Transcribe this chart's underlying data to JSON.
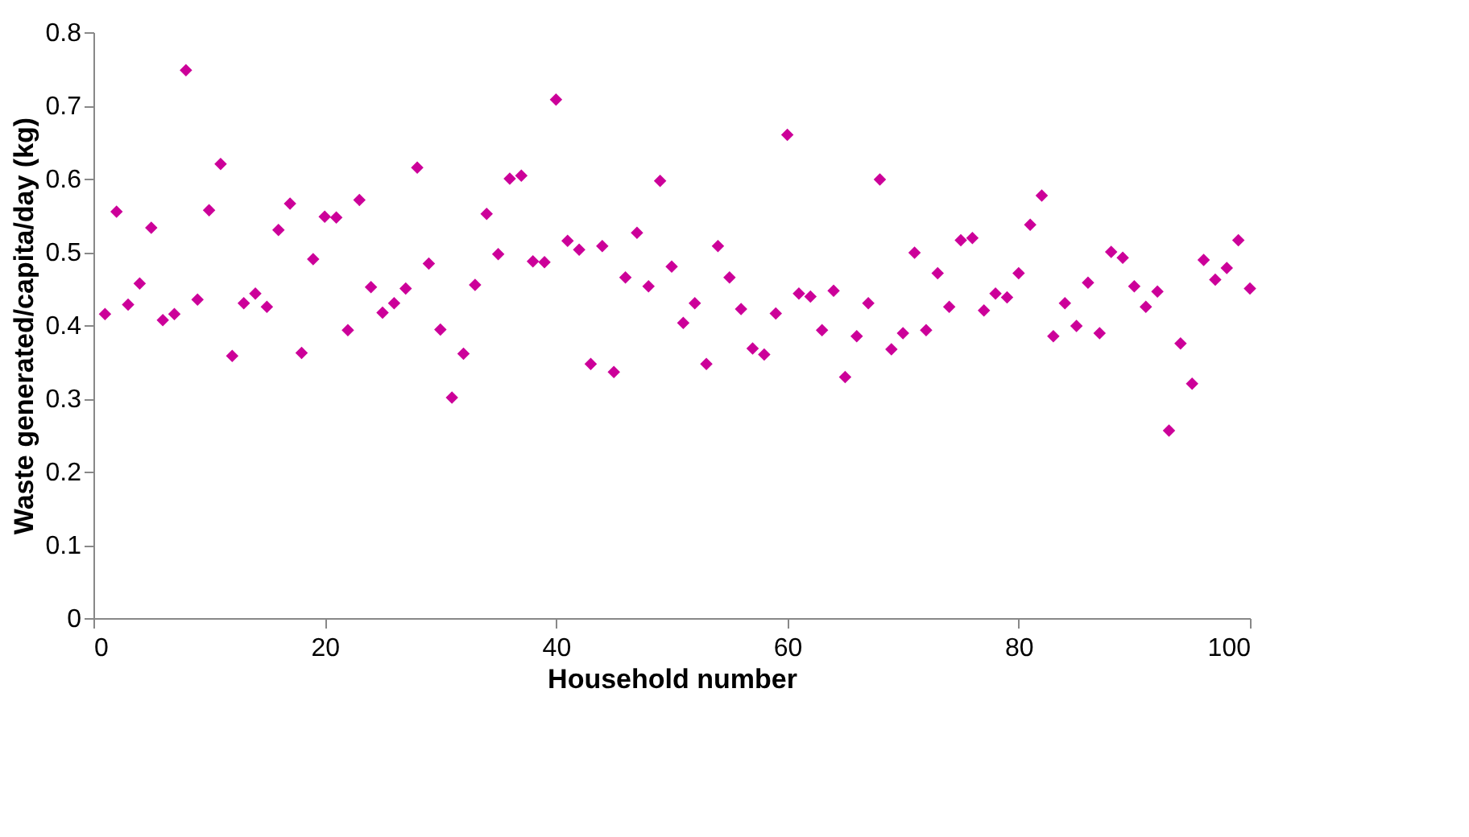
{
  "chart_data": {
    "type": "scatter",
    "xlabel": "Household number",
    "ylabel": "Waste generated/capita/day (kg)",
    "x": [
      1,
      2,
      3,
      4,
      5,
      6,
      7,
      8,
      9,
      10,
      11,
      12,
      13,
      14,
      15,
      16,
      17,
      18,
      19,
      20,
      21,
      22,
      23,
      24,
      25,
      26,
      27,
      28,
      29,
      30,
      31,
      32,
      33,
      34,
      35,
      36,
      37,
      38,
      39,
      40,
      41,
      42,
      43,
      44,
      45,
      46,
      47,
      48,
      49,
      50,
      51,
      52,
      53,
      54,
      55,
      56,
      57,
      58,
      59,
      60,
      61,
      62,
      63,
      64,
      65,
      66,
      67,
      68,
      69,
      70,
      71,
      72,
      73,
      74,
      75,
      76,
      77,
      78,
      79,
      80,
      81,
      82,
      83,
      84,
      85,
      86,
      87,
      88,
      89,
      90,
      91,
      92,
      93,
      94,
      95,
      96,
      97,
      98,
      99,
      100
    ],
    "series": [
      {
        "color": "#cc0099",
        "values": [
          0.415,
          0.555,
          0.428,
          0.457,
          0.533,
          0.407,
          0.415,
          0.748,
          0.435,
          0.557,
          0.62,
          0.358,
          0.43,
          0.443,
          0.425,
          0.53,
          0.566,
          0.362,
          0.49,
          0.548,
          0.547,
          0.393,
          0.571,
          0.452,
          0.417,
          0.43,
          0.45,
          0.615,
          0.484,
          0.394,
          0.301,
          0.361,
          0.455,
          0.552,
          0.497,
          0.6,
          0.604,
          0.487,
          0.486,
          0.708,
          0.515,
          0.503,
          0.347,
          0.508,
          0.336,
          0.465,
          0.526,
          0.453,
          0.597,
          0.48,
          0.403,
          0.43,
          0.347,
          0.508,
          0.465,
          0.422,
          0.368,
          0.36,
          0.416,
          0.66,
          0.443,
          0.439,
          0.393,
          0.447,
          0.329,
          0.385,
          0.43,
          0.599,
          0.367,
          0.389,
          0.499,
          0.393,
          0.471,
          0.425,
          0.516,
          0.519,
          0.42,
          0.443,
          0.438,
          0.471,
          0.537,
          0.577,
          0.385,
          0.43,
          0.399,
          0.458,
          0.389,
          0.5,
          0.492,
          0.453,
          0.425,
          0.446,
          0.256,
          0.375,
          0.32,
          0.489,
          0.462,
          0.478,
          0.516,
          0.45
        ]
      }
    ],
    "xlim": [
      0,
      100
    ],
    "xticks": [
      0,
      20,
      40,
      60,
      80,
      100
    ],
    "ylim": [
      0,
      0.8
    ],
    "yticks": [
      0,
      0.1,
      0.2,
      0.3,
      0.4,
      0.5,
      0.6,
      0.7,
      0.8
    ],
    "grid": false,
    "legend": false,
    "marker": "diamond"
  }
}
